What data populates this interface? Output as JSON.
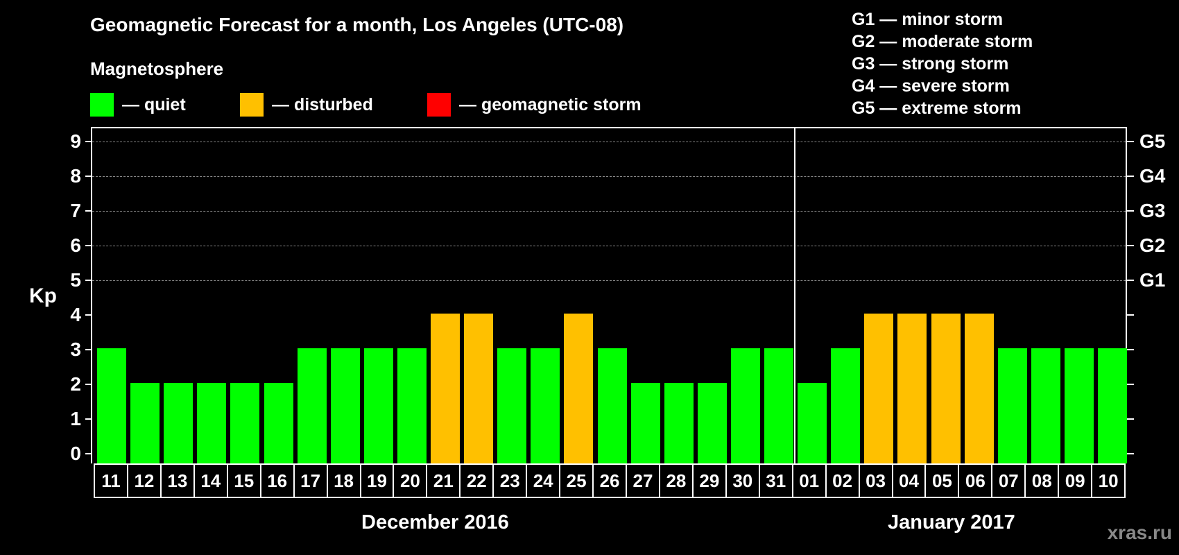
{
  "chart_data": {
    "type": "bar",
    "title": "Geomagnetic Forecast for a month, Los Angeles (UTC-08)",
    "xlabel": "",
    "ylabel": "Kp",
    "ylim": [
      0,
      9
    ],
    "y_ticks": [
      0,
      1,
      2,
      3,
      4,
      5,
      6,
      7,
      8,
      9
    ],
    "right_axis_labels": [
      {
        "kp": 5,
        "label": "G1"
      },
      {
        "kp": 6,
        "label": "G2"
      },
      {
        "kp": 7,
        "label": "G3"
      },
      {
        "kp": 8,
        "label": "G4"
      },
      {
        "kp": 9,
        "label": "G5"
      }
    ],
    "grid": "dashed horizontal at Kp 5-9",
    "categories": [
      "11",
      "12",
      "13",
      "14",
      "15",
      "16",
      "17",
      "18",
      "19",
      "20",
      "21",
      "22",
      "23",
      "24",
      "25",
      "26",
      "27",
      "28",
      "29",
      "30",
      "31",
      "01",
      "02",
      "03",
      "04",
      "05",
      "06",
      "07",
      "08",
      "09",
      "10"
    ],
    "values": [
      3,
      2,
      2,
      2,
      2,
      2,
      3,
      3,
      3,
      3,
      4,
      4,
      3,
      3,
      4,
      3,
      2,
      2,
      2,
      3,
      3,
      2,
      3,
      4,
      4,
      4,
      4,
      3,
      3,
      3,
      3
    ],
    "status": [
      "quiet",
      "quiet",
      "quiet",
      "quiet",
      "quiet",
      "quiet",
      "quiet",
      "quiet",
      "quiet",
      "quiet",
      "disturbed",
      "disturbed",
      "quiet",
      "quiet",
      "disturbed",
      "quiet",
      "quiet",
      "quiet",
      "quiet",
      "quiet",
      "quiet",
      "quiet",
      "quiet",
      "disturbed",
      "disturbed",
      "disturbed",
      "disturbed",
      "quiet",
      "quiet",
      "quiet",
      "quiet"
    ],
    "month_groups": [
      {
        "label": "December 2016",
        "start": 0,
        "end": 20
      },
      {
        "label": "January 2017",
        "start": 21,
        "end": 30
      }
    ],
    "legend": [
      {
        "label": "— quiet",
        "color": "#00ff00"
      },
      {
        "label": "— disturbed",
        "color": "#ffc000"
      },
      {
        "label": "— geomagnetic storm",
        "color": "#ff0000"
      }
    ]
  },
  "header": {
    "title": "Geomagnetic Forecast for a month, Los Angeles (UTC-08)",
    "subtitle": "Magnetosphere"
  },
  "legend": {
    "quiet": "— quiet",
    "disturbed": "— disturbed",
    "storm": "— geomagnetic storm"
  },
  "colors": {
    "quiet": "#00ff00",
    "disturbed": "#ffc000",
    "storm": "#ff0000",
    "grid": "#888888"
  },
  "storm_scale": [
    "G1 — minor storm",
    "G2 — moderate storm",
    "G3 — strong storm",
    "G4 — severe storm",
    "G5 — extreme storm"
  ],
  "axis": {
    "ylabel": "Kp",
    "y_ticks": [
      "0",
      "1",
      "2",
      "3",
      "4",
      "5",
      "6",
      "7",
      "8",
      "9"
    ],
    "g_labels": [
      "G1",
      "G2",
      "G3",
      "G4",
      "G5"
    ]
  },
  "months": {
    "dec": "December 2016",
    "jan": "January 2017"
  },
  "watermark": "xras.ru"
}
